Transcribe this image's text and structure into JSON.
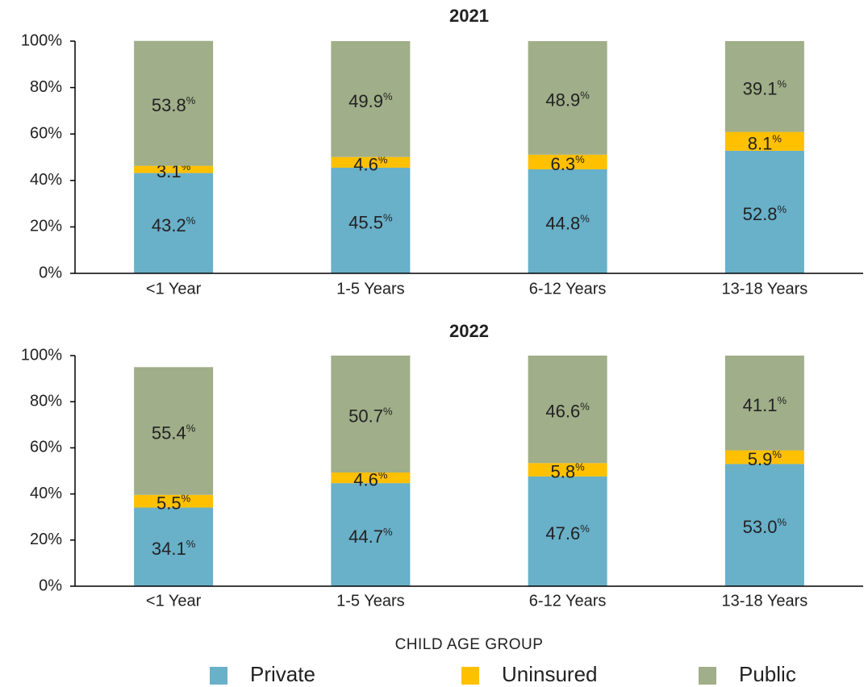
{
  "chart_data": [
    {
      "type": "bar",
      "stacked": true,
      "title": "2021",
      "categories": [
        "<1 Year",
        "1-5 Years",
        "6-12 Years",
        "13-18 Years"
      ],
      "series": [
        {
          "name": "Private",
          "color": "#69b0c9",
          "values": [
            43.2,
            45.5,
            44.8,
            52.8
          ],
          "value_labels": [
            "43.2%",
            "45.5%",
            "44.8%",
            "52.8%"
          ]
        },
        {
          "name": "Uninsured",
          "color": "#ffc000",
          "values": [
            3.1,
            4.6,
            6.3,
            8.1
          ],
          "value_labels": [
            "3.1%",
            "4.6%",
            "6.3%",
            "8.1%"
          ]
        },
        {
          "name": "Public",
          "color": "#a0ae89",
          "values": [
            53.8,
            49.9,
            48.9,
            39.1
          ],
          "value_labels": [
            "53.8%",
            "49.9%",
            "48.9%",
            "39.1%"
          ]
        }
      ],
      "ylim": [
        0,
        100
      ],
      "yticks": [
        {
          "value": 0,
          "label": "0%"
        },
        {
          "value": 20,
          "label": "20%"
        },
        {
          "value": 40,
          "label": "40%"
        },
        {
          "value": 60,
          "label": "60%"
        },
        {
          "value": 80,
          "label": "80%"
        },
        {
          "value": 100,
          "label": "100%"
        }
      ]
    },
    {
      "type": "bar",
      "stacked": true,
      "title": "2022",
      "x_label": "CHILD AGE GROUP",
      "legend": "bottom",
      "categories": [
        "<1 Year",
        "1-5 Years",
        "6-12 Years",
        "13-18 Years"
      ],
      "series": [
        {
          "name": "Private",
          "color": "#69b0c9",
          "values": [
            34.1,
            44.7,
            47.6,
            53.0
          ],
          "value_labels": [
            "34.1%",
            "44.7%",
            "47.6%",
            "53.0%"
          ]
        },
        {
          "name": "Uninsured",
          "color": "#ffc000",
          "values": [
            5.5,
            4.6,
            5.8,
            5.9
          ],
          "value_labels": [
            "5.5%",
            "4.6%",
            "5.8%",
            "5.9%"
          ]
        },
        {
          "name": "Public",
          "color": "#a0ae89",
          "values": [
            55.4,
            50.7,
            46.6,
            41.1
          ],
          "value_labels": [
            "55.4%",
            "50.7%",
            "46.6%",
            "41.1%"
          ]
        }
      ],
      "ylim": [
        0,
        100
      ],
      "yticks": [
        {
          "value": 0,
          "label": "0%"
        },
        {
          "value": 20,
          "label": "20%"
        },
        {
          "value": 40,
          "label": "40%"
        },
        {
          "value": 60,
          "label": "60%"
        },
        {
          "value": 80,
          "label": "80%"
        },
        {
          "value": 100,
          "label": "100%"
        }
      ]
    }
  ]
}
